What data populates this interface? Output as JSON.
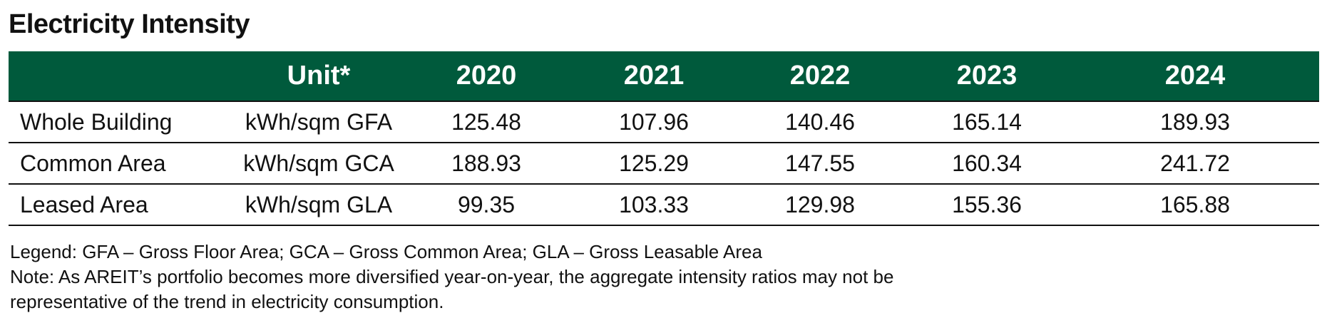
{
  "title": "Electricity Intensity",
  "table": {
    "headers": [
      "",
      "Unit*",
      "2020",
      "2021",
      "2022",
      "2023",
      "2024"
    ],
    "rows": [
      {
        "label": "Whole Building",
        "unit": "kWh/sqm GFA",
        "values": [
          "125.48",
          "107.96",
          "140.46",
          "165.14",
          "189.93"
        ]
      },
      {
        "label": "Common Area",
        "unit": "kWh/sqm GCA",
        "values": [
          "188.93",
          "125.29",
          "147.55",
          "160.34",
          "241.72"
        ]
      },
      {
        "label": "Leased Area",
        "unit": "kWh/sqm GLA",
        "values": [
          "99.35",
          "103.33",
          "129.98",
          "155.36",
          "165.88"
        ]
      }
    ]
  },
  "legend": "Legend: GFA – Gross Floor Area; GCA – Gross Common Area; GLA – Gross Leasable Area",
  "note_line1": "Note: As AREIT’s portfolio becomes more diversified year-on-year, the aggregate intensity ratios may not be",
  "note_line2": "representative of the trend in electricity consumption.",
  "colors": {
    "header_bg": "#005a3c",
    "header_text": "#ffffff",
    "rule": "#111111"
  }
}
